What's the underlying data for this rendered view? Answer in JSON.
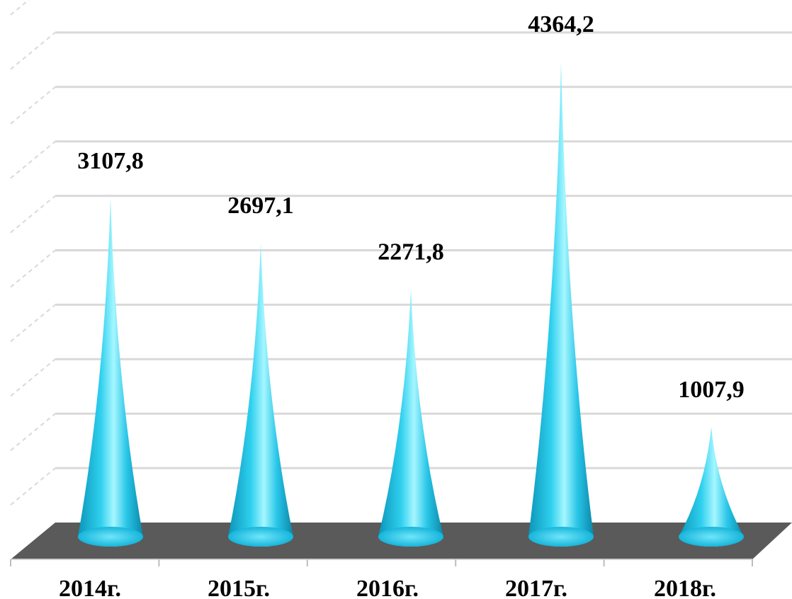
{
  "chart_data": {
    "type": "bar",
    "style": "3d-cone",
    "categories": [
      "2014г.",
      "2015г.",
      "2016г.",
      "2017г.",
      "2018г."
    ],
    "series": [
      {
        "values": [
          3107.8,
          2697.1,
          2271.8,
          4364.2,
          1007.9
        ]
      }
    ],
    "value_labels": [
      "3107,8",
      "2697,1",
      "2271,8",
      "4364,2",
      "1007,9"
    ],
    "title": "",
    "xlabel": "",
    "ylabel": "",
    "ylim": [
      0,
      5000
    ],
    "grid": true,
    "legend": "none",
    "colors": {
      "cone": "#1ec3e6",
      "cone_light": "#9bf3ff",
      "cone_dark": "#0a8fb0",
      "floor": "#5a5a5a",
      "grid": "#d9d9d9"
    }
  }
}
